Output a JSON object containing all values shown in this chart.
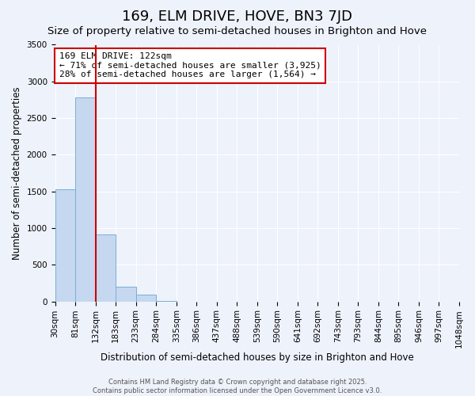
{
  "title": "169, ELM DRIVE, HOVE, BN3 7JD",
  "subtitle": "Size of property relative to semi-detached houses in Brighton and Hove",
  "xlabel": "Distribution of semi-detached houses by size in Brighton and Hove",
  "ylabel": "Number of semi-detached properties",
  "bin_edges": [
    "30sqm",
    "81sqm",
    "132sqm",
    "183sqm",
    "233sqm",
    "284sqm",
    "335sqm",
    "386sqm",
    "437sqm",
    "488sqm",
    "539sqm",
    "590sqm",
    "641sqm",
    "692sqm",
    "743sqm",
    "793sqm",
    "844sqm",
    "895sqm",
    "946sqm",
    "997sqm",
    "1048sqm"
  ],
  "bin_values": [
    1530,
    2780,
    910,
    205,
    90,
    10,
    0,
    0,
    0,
    0,
    0,
    0,
    0,
    0,
    0,
    0,
    0,
    0,
    0,
    0
  ],
  "bar_color": "#c5d8f0",
  "bar_edge_color": "#7aafd4",
  "vline_position": 1.5,
  "vline_color": "#cc0000",
  "ylim": [
    0,
    3500
  ],
  "yticks": [
    0,
    500,
    1000,
    1500,
    2000,
    2500,
    3000,
    3500
  ],
  "annotation_line1": "169 ELM DRIVE: 122sqm",
  "annotation_line2": "← 71% of semi-detached houses are smaller (3,925)",
  "annotation_line3": "28% of semi-detached houses are larger (1,564) →",
  "annotation_box_color": "#ffffff",
  "annotation_box_edge": "#cc0000",
  "footer1": "Contains HM Land Registry data © Crown copyright and database right 2025.",
  "footer2": "Contains public sector information licensed under the Open Government Licence v3.0.",
  "background_color": "#eef2fb",
  "grid_color": "#ffffff",
  "title_fontsize": 13,
  "subtitle_fontsize": 9.5,
  "axis_label_fontsize": 8.5,
  "tick_fontsize": 7.5,
  "annotation_fontsize": 8,
  "footer_fontsize": 6
}
